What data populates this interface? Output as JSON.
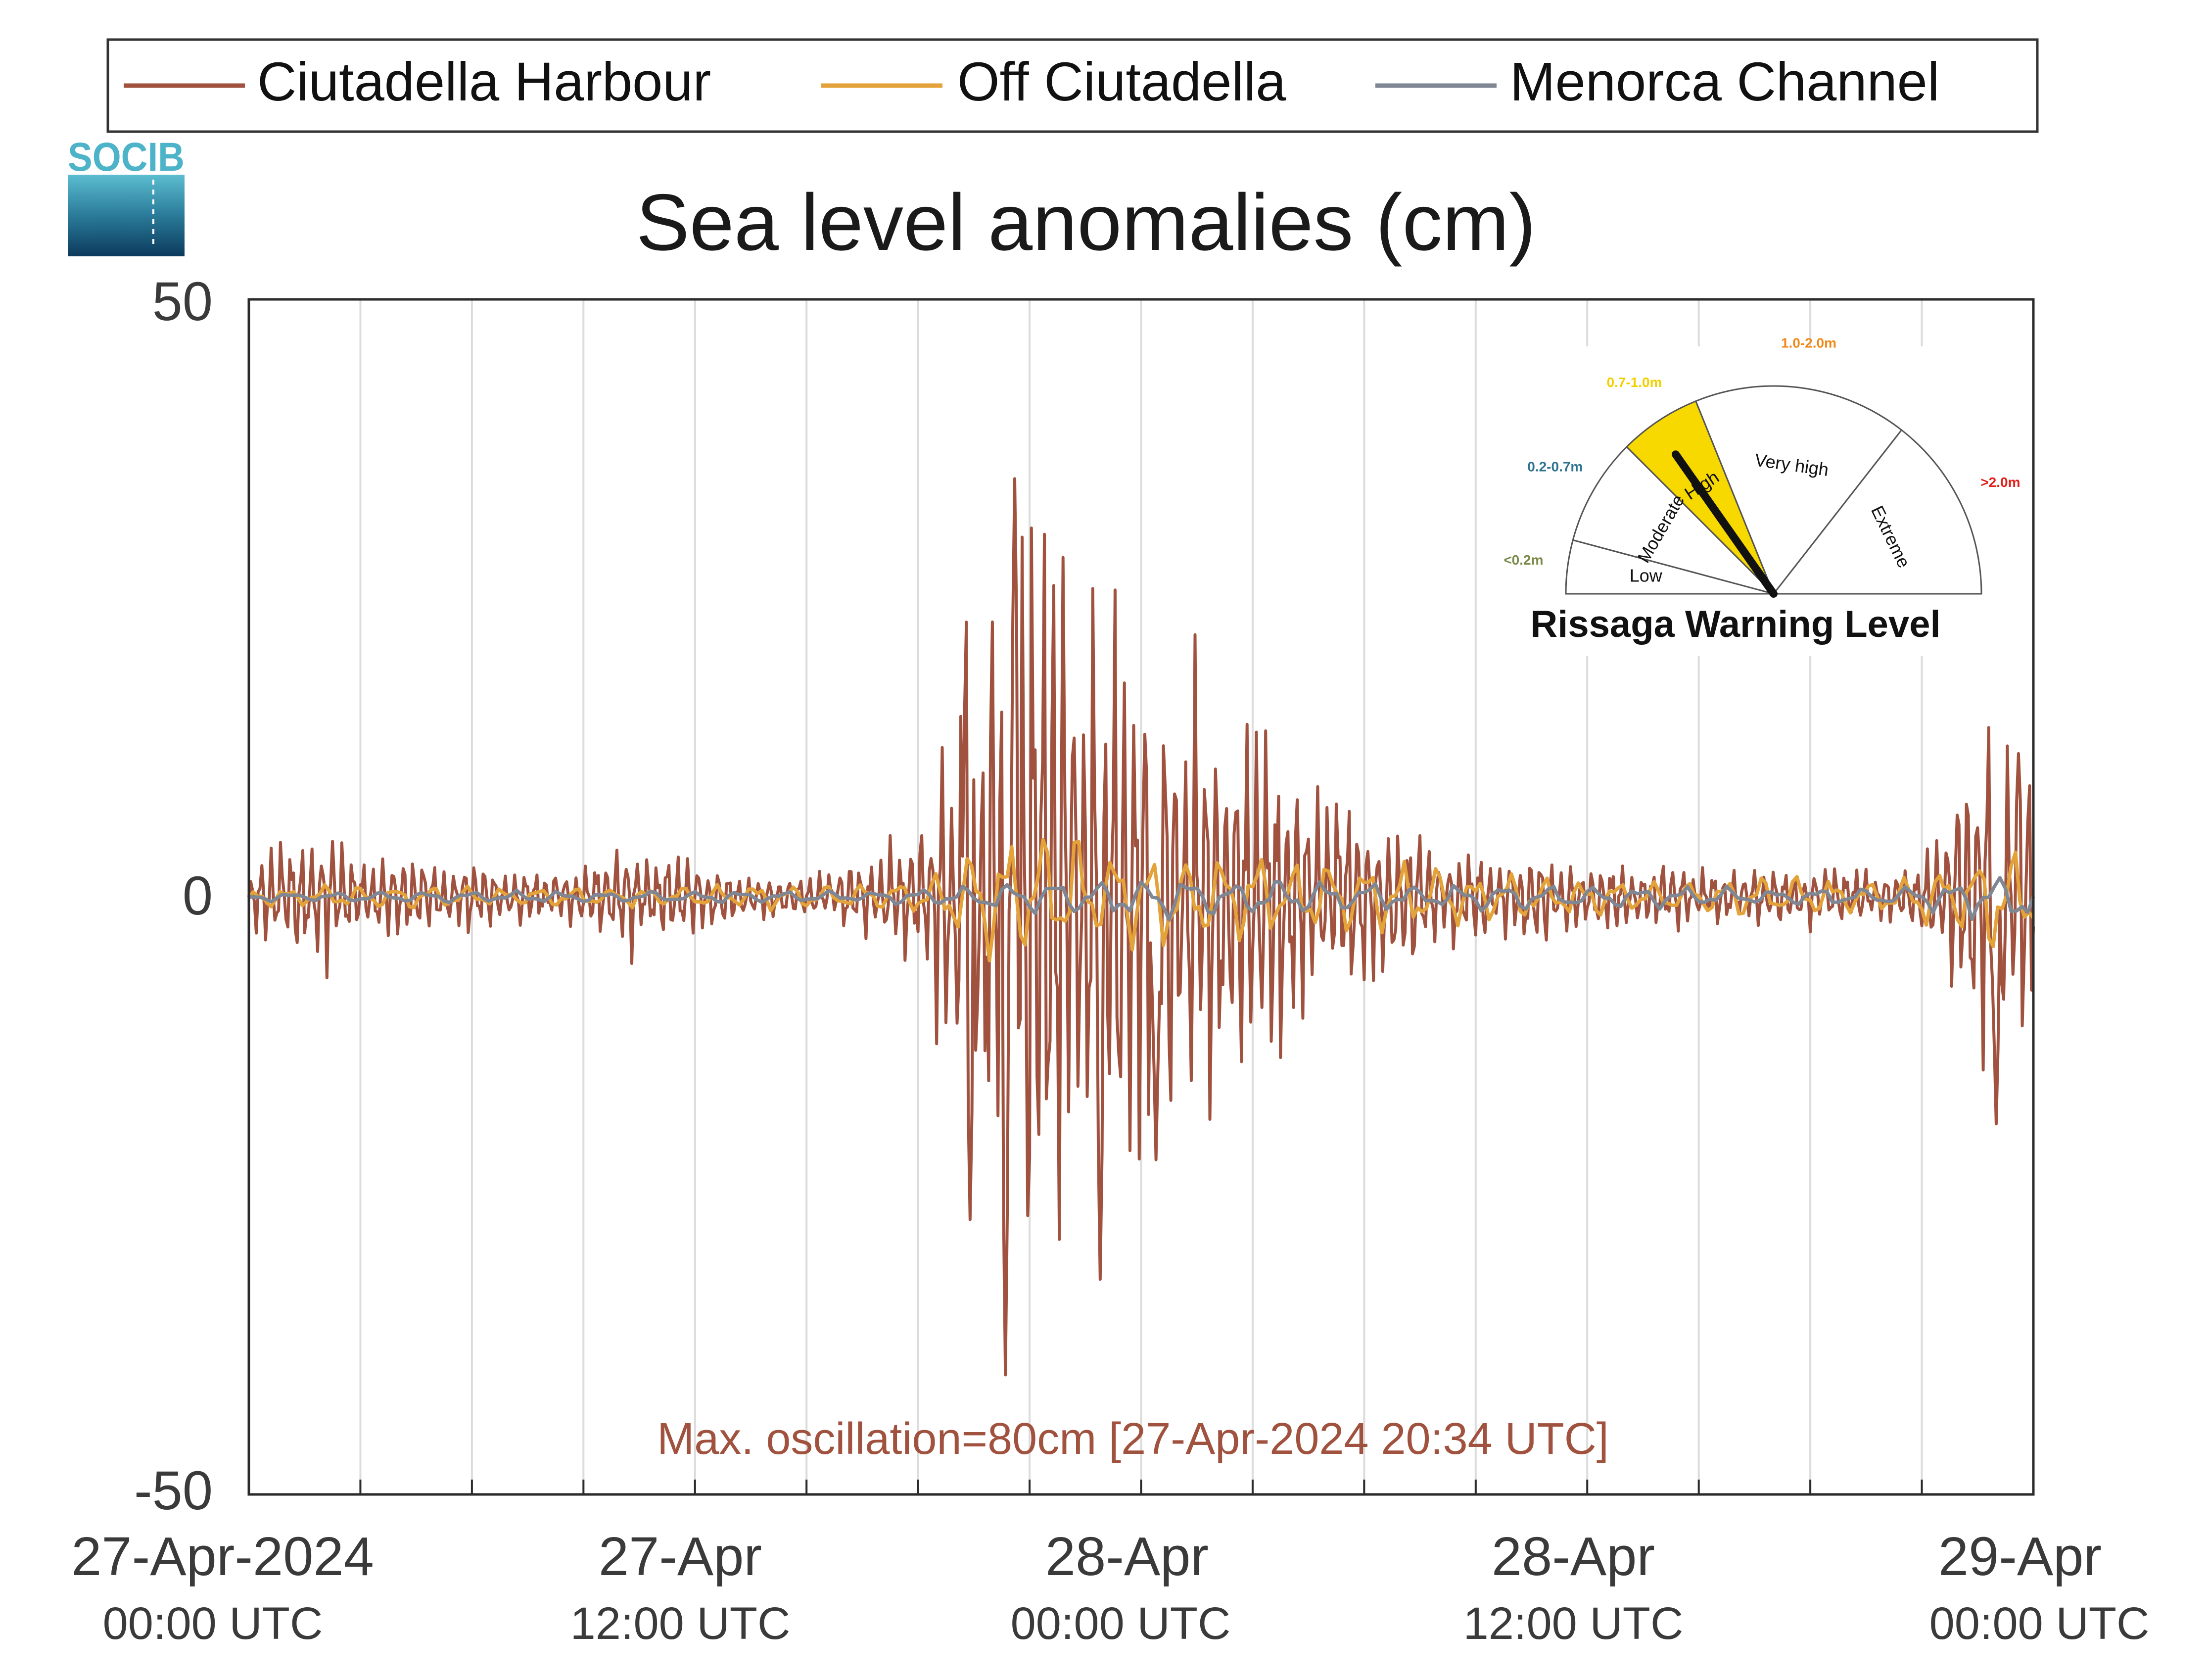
{
  "logo": {
    "text": "SOCIB"
  },
  "legend": {
    "items": [
      {
        "label": "Ciutadella Harbour",
        "color": "#a0523f"
      },
      {
        "label": "Off Ciutadella",
        "color": "#e3a23a"
      },
      {
        "label": "Menorca Channel",
        "color": "#7f8694"
      }
    ]
  },
  "annotation": {
    "text": "Max. oscillation=80cm [27-Apr-2024 20:34 UTC]",
    "color": "#a0523f"
  },
  "gauge": {
    "title": "Rissaga Warning Level",
    "current_level": "High",
    "needle_fraction": 0.305,
    "levels": [
      {
        "name": "Low",
        "range": "<0.2m",
        "range_color": "#7a8a4a",
        "fill": "#ffffff"
      },
      {
        "name": "Moderate",
        "range": "0.2-0.7m",
        "range_color": "#2f7490",
        "fill": "#ffffff"
      },
      {
        "name": "High",
        "range": "0.7-1.0m",
        "range_color": "#f2d000",
        "fill": "#f7d900"
      },
      {
        "name": "Very high",
        "range": "1.0-2.0m",
        "range_color": "#ef8a1a",
        "fill": "#ffffff"
      },
      {
        "name": "Extreme",
        "range": ">2.0m",
        "range_color": "#e0201a",
        "fill": "#ffffff"
      }
    ]
  },
  "chart_data": {
    "type": "line",
    "title": "Sea level anomalies (cm)",
    "xlabel": "",
    "ylabel": "",
    "x_unit": "hours since 27-Apr-2024 00:00 UTC",
    "xlim": [
      0,
      48
    ],
    "ylim": [
      -50,
      50
    ],
    "yticks": [
      -50,
      0,
      50
    ],
    "grid": "vertical, every 3 hours",
    "legend_position": "top",
    "x_tick_labels": [
      {
        "hour": 0,
        "line1": "27-Apr-2024",
        "line2": "00:00 UTC"
      },
      {
        "hour": 12,
        "line1": "27-Apr",
        "line2": "12:00 UTC"
      },
      {
        "hour": 24,
        "line1": "28-Apr",
        "line2": "00:00 UTC"
      },
      {
        "hour": 36,
        "line1": "28-Apr",
        "line2": "12:00 UTC"
      },
      {
        "hour": 48,
        "line1": "29-Apr",
        "line2": "00:00 UTC"
      }
    ],
    "series": [
      {
        "name": "Ciutadella Harbour",
        "color": "#a0523f",
        "envelope": [
          [
            0,
            2
          ],
          [
            1,
            4
          ],
          [
            2,
            5
          ],
          [
            3,
            3
          ],
          [
            4,
            3
          ],
          [
            5,
            2.5
          ],
          [
            6,
            2.5
          ],
          [
            7,
            2
          ],
          [
            8,
            2
          ],
          [
            9,
            2
          ],
          [
            10,
            4
          ],
          [
            11,
            3
          ],
          [
            12,
            2.5
          ],
          [
            13,
            2
          ],
          [
            14,
            1.5
          ],
          [
            15,
            1.5
          ],
          [
            16,
            2
          ],
          [
            17,
            3
          ],
          [
            18,
            5
          ],
          [
            19,
            13
          ],
          [
            20,
            22
          ],
          [
            21,
            30
          ],
          [
            22,
            25
          ],
          [
            23,
            22
          ],
          [
            24,
            20
          ],
          [
            25,
            18
          ],
          [
            26,
            14
          ],
          [
            27,
            12
          ],
          [
            28,
            10
          ],
          [
            29,
            7
          ],
          [
            30,
            6
          ],
          [
            31,
            5
          ],
          [
            32,
            4
          ],
          [
            33,
            3
          ],
          [
            34,
            3
          ],
          [
            35,
            3
          ],
          [
            36,
            2.5
          ],
          [
            37,
            2.5
          ],
          [
            38,
            2.5
          ],
          [
            39,
            2
          ],
          [
            40,
            2
          ],
          [
            41,
            2
          ],
          [
            42,
            2
          ],
          [
            43,
            2
          ],
          [
            44,
            2
          ],
          [
            45,
            2
          ],
          [
            46,
            8
          ],
          [
            47,
            14
          ],
          [
            48,
            10
          ]
        ],
        "peaks": [
          {
            "x": 20.6,
            "y": 35
          },
          {
            "x": 20.35,
            "y": -40
          },
          {
            "x": 19.3,
            "y": 23
          },
          {
            "x": 19.4,
            "y": -27
          },
          {
            "x": 22.9,
            "y": -32
          },
          {
            "x": 24.4,
            "y": -22
          },
          {
            "x": 47.0,
            "y": -19
          },
          {
            "x": 47.6,
            "y": 12
          }
        ]
      },
      {
        "name": "Off Ciutadella",
        "color": "#e3a23a",
        "envelope": [
          [
            0,
            0.8
          ],
          [
            4,
            1
          ],
          [
            8,
            0.8
          ],
          [
            12,
            1
          ],
          [
            16,
            1
          ],
          [
            18,
            1.5
          ],
          [
            19,
            3
          ],
          [
            20,
            5
          ],
          [
            21,
            6
          ],
          [
            22,
            5
          ],
          [
            24,
            4.5
          ],
          [
            26,
            4
          ],
          [
            28,
            3.5
          ],
          [
            30,
            3
          ],
          [
            32,
            2.5
          ],
          [
            34,
            2
          ],
          [
            36,
            1.5
          ],
          [
            40,
            1.5
          ],
          [
            44,
            1.5
          ],
          [
            46,
            3
          ],
          [
            47,
            5
          ],
          [
            48,
            4
          ]
        ]
      },
      {
        "name": "Menorca Channel",
        "color": "#7f8694",
        "envelope": [
          [
            0,
            0.4
          ],
          [
            8,
            0.5
          ],
          [
            16,
            0.5
          ],
          [
            19,
            0.8
          ],
          [
            20,
            1.5
          ],
          [
            24,
            2
          ],
          [
            28,
            1.6
          ],
          [
            32,
            1.2
          ],
          [
            36,
            1
          ],
          [
            40,
            0.8
          ],
          [
            44,
            0.8
          ],
          [
            46,
            1.5
          ],
          [
            47,
            2.5
          ],
          [
            48,
            2
          ]
        ]
      }
    ]
  }
}
